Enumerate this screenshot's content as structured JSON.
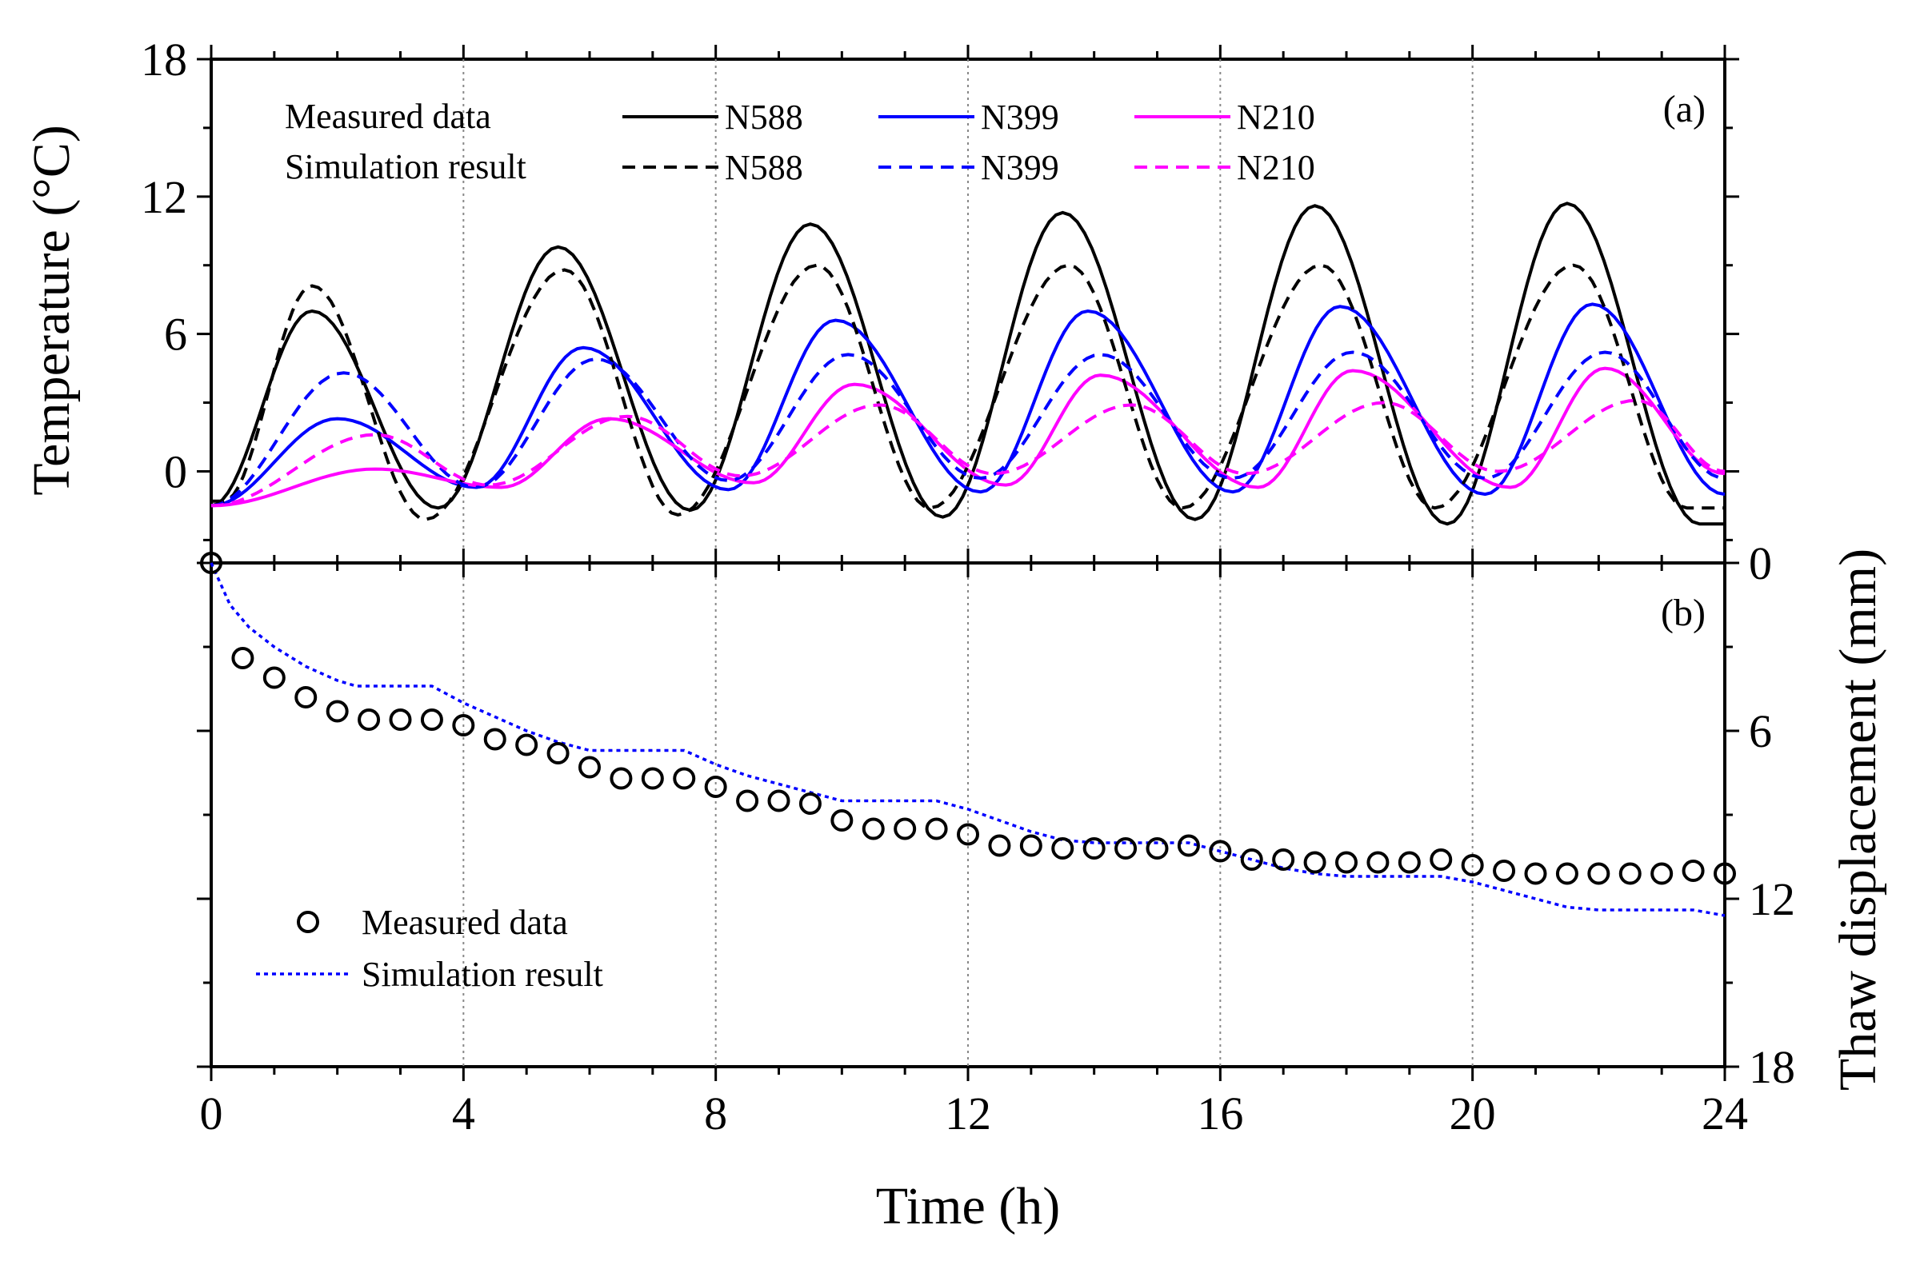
{
  "chart_data": [
    {
      "panel": "(a)",
      "type": "line",
      "ylabel": "Temperature (°C)",
      "xlim": [
        0,
        24
      ],
      "ylim": [
        -4,
        18
      ],
      "yticks": [
        "0",
        "6",
        "12",
        "18"
      ],
      "grid": "vertical dotted at x = 4, 8, 12, 16, 20",
      "legend": {
        "placement": "top",
        "row_labels": [
          "Measured data",
          "Simulation result"
        ]
      },
      "series": [
        {
          "name": "N588",
          "kind": "measured",
          "style": "solid",
          "color": "#000000",
          "peaks": [
            [
              1.6,
              7.0
            ],
            [
              5.5,
              9.8
            ],
            [
              9.5,
              10.8
            ],
            [
              13.5,
              11.3
            ],
            [
              17.5,
              11.6
            ],
            [
              21.5,
              11.7
            ]
          ],
          "troughs": [
            [
              0,
              -1.5
            ],
            [
              3.6,
              -1.6
            ],
            [
              7.6,
              -1.7
            ],
            [
              11.6,
              -2.0
            ],
            [
              15.6,
              -2.1
            ],
            [
              19.6,
              -2.3
            ],
            [
              23.6,
              -2.3
            ]
          ]
        },
        {
          "name": "N399",
          "kind": "measured",
          "style": "solid",
          "color": "#0000ff",
          "peaks": [
            [
              2.0,
              2.3
            ],
            [
              5.9,
              5.4
            ],
            [
              9.9,
              6.6
            ],
            [
              13.9,
              7.0
            ],
            [
              17.9,
              7.2
            ],
            [
              21.9,
              7.3
            ]
          ],
          "troughs": [
            [
              0,
              -1.5
            ],
            [
              4.2,
              -0.7
            ],
            [
              8.2,
              -0.8
            ],
            [
              12.2,
              -0.9
            ],
            [
              16.2,
              -0.9
            ],
            [
              20.2,
              -1.0
            ],
            [
              24,
              -1.0
            ]
          ]
        },
        {
          "name": "N210",
          "kind": "measured",
          "style": "solid",
          "color": "#ff00ff",
          "peaks": [
            [
              2.6,
              0.1
            ],
            [
              6.3,
              2.3
            ],
            [
              10.2,
              3.8
            ],
            [
              14.1,
              4.2
            ],
            [
              18.1,
              4.4
            ],
            [
              22.1,
              4.5
            ]
          ],
          "troughs": [
            [
              0,
              -1.5
            ],
            [
              4.6,
              -0.7
            ],
            [
              8.6,
              -0.5
            ],
            [
              12.6,
              -0.6
            ],
            [
              16.6,
              -0.7
            ],
            [
              20.6,
              -0.7
            ],
            [
              24,
              -0.1
            ]
          ]
        },
        {
          "name": "N588",
          "kind": "simulated",
          "style": "dashed",
          "color": "#000000",
          "peaks": [
            [
              1.6,
              8.1
            ],
            [
              5.6,
              8.8
            ],
            [
              9.6,
              9.0
            ],
            [
              13.6,
              9.0
            ],
            [
              17.6,
              9.0
            ],
            [
              21.6,
              9.0
            ]
          ],
          "troughs": [
            [
              0.2,
              -1.3
            ],
            [
              3.4,
              -2.1
            ],
            [
              7.4,
              -1.9
            ],
            [
              11.4,
              -1.6
            ],
            [
              15.4,
              -1.6
            ],
            [
              19.4,
              -1.6
            ],
            [
              23.4,
              -1.6
            ]
          ]
        },
        {
          "name": "N399",
          "kind": "simulated",
          "style": "dashed",
          "color": "#0000ff",
          "peaks": [
            [
              2.1,
              4.3
            ],
            [
              6.1,
              4.9
            ],
            [
              10.1,
              5.1
            ],
            [
              14.1,
              5.1
            ],
            [
              18.1,
              5.2
            ],
            [
              22.1,
              5.2
            ]
          ],
          "troughs": [
            [
              0,
              -1.5
            ],
            [
              4.2,
              -0.7
            ],
            [
              8.2,
              -0.4
            ],
            [
              12.2,
              -0.3
            ],
            [
              16.2,
              -0.3
            ],
            [
              20.2,
              -0.3
            ],
            [
              24,
              -0.3
            ]
          ]
        },
        {
          "name": "N210",
          "kind": "simulated",
          "style": "dashed",
          "color": "#ff00ff",
          "peaks": [
            [
              2.6,
              1.6
            ],
            [
              6.6,
              2.4
            ],
            [
              10.6,
              2.9
            ],
            [
              14.6,
              2.9
            ],
            [
              18.6,
              3.0
            ],
            [
              22.6,
              3.1
            ]
          ],
          "troughs": [
            [
              0,
              -1.5
            ],
            [
              4.4,
              -0.6
            ],
            [
              8.4,
              -0.2
            ],
            [
              12.4,
              -0.1
            ],
            [
              16.4,
              -0.1
            ],
            [
              20.4,
              0.0
            ],
            [
              24,
              0.0
            ]
          ]
        }
      ]
    },
    {
      "panel": "(b)",
      "type": "scatter",
      "xlabel": "Time (h)",
      "ylabel": "Thaw displacement (mm)",
      "xlim": [
        0,
        24
      ],
      "xticks": [
        "0",
        "4",
        "8",
        "12",
        "16",
        "20",
        "24"
      ],
      "ylim": [
        0,
        18
      ],
      "y_inverted": true,
      "yticks": [
        "0",
        "6",
        "12",
        "18"
      ],
      "grid": "vertical dotted at x = 4, 8, 12, 16, 20",
      "legend": {
        "placement": "bottom-left"
      },
      "series": [
        {
          "name": "Measured data",
          "marker": "open-circle",
          "color": "#000000",
          "x": [
            0,
            0.5,
            1,
            1.5,
            2,
            2.5,
            3,
            3.5,
            4,
            4.5,
            5,
            5.5,
            6,
            6.5,
            7,
            7.5,
            8,
            8.5,
            9,
            9.5,
            10,
            10.5,
            11,
            11.5,
            12,
            12.5,
            13,
            13.5,
            14,
            14.5,
            15,
            15.5,
            16,
            16.5,
            17,
            17.5,
            18,
            18.5,
            19,
            19.5,
            20,
            20.5,
            21,
            21.5,
            22,
            22.5,
            23,
            23.5,
            24
          ],
          "y": [
            0,
            3.4,
            4.1,
            4.8,
            5.3,
            5.6,
            5.6,
            5.6,
            5.8,
            6.3,
            6.5,
            6.8,
            7.3,
            7.7,
            7.7,
            7.7,
            8.0,
            8.5,
            8.5,
            8.6,
            9.2,
            9.5,
            9.5,
            9.5,
            9.7,
            10.1,
            10.1,
            10.2,
            10.2,
            10.2,
            10.2,
            10.1,
            10.3,
            10.6,
            10.6,
            10.7,
            10.7,
            10.7,
            10.7,
            10.6,
            10.8,
            11.0,
            11.1,
            11.1,
            11.1,
            11.1,
            11.1,
            11.0,
            11.1
          ]
        },
        {
          "name": "Simulation result",
          "style": "dotted",
          "color": "#0000ff",
          "x": [
            0,
            0.3,
            0.6,
            1,
            1.5,
            2,
            2.3,
            3,
            3.5,
            4,
            4.5,
            5,
            5.5,
            6,
            6.5,
            7,
            7.5,
            8,
            8.5,
            9,
            9.5,
            10,
            10.5,
            11,
            11.5,
            12,
            12.5,
            13,
            13.5,
            14,
            14.5,
            15,
            15.5,
            16,
            16.5,
            17,
            17.5,
            18,
            18.5,
            19,
            19.5,
            20,
            20.5,
            21,
            21.5,
            22,
            22.5,
            23,
            23.5,
            24
          ],
          "y": [
            0,
            1.5,
            2.3,
            3.0,
            3.7,
            4.2,
            4.4,
            4.4,
            4.4,
            5.0,
            5.5,
            6.0,
            6.4,
            6.7,
            6.7,
            6.7,
            6.7,
            7.2,
            7.6,
            7.9,
            8.2,
            8.5,
            8.5,
            8.5,
            8.5,
            8.8,
            9.2,
            9.6,
            9.9,
            10.0,
            10.0,
            10.0,
            10.0,
            10.3,
            10.6,
            10.9,
            11.1,
            11.2,
            11.2,
            11.2,
            11.2,
            11.4,
            11.7,
            12.0,
            12.3,
            12.4,
            12.4,
            12.4,
            12.4,
            12.6
          ]
        }
      ]
    }
  ]
}
